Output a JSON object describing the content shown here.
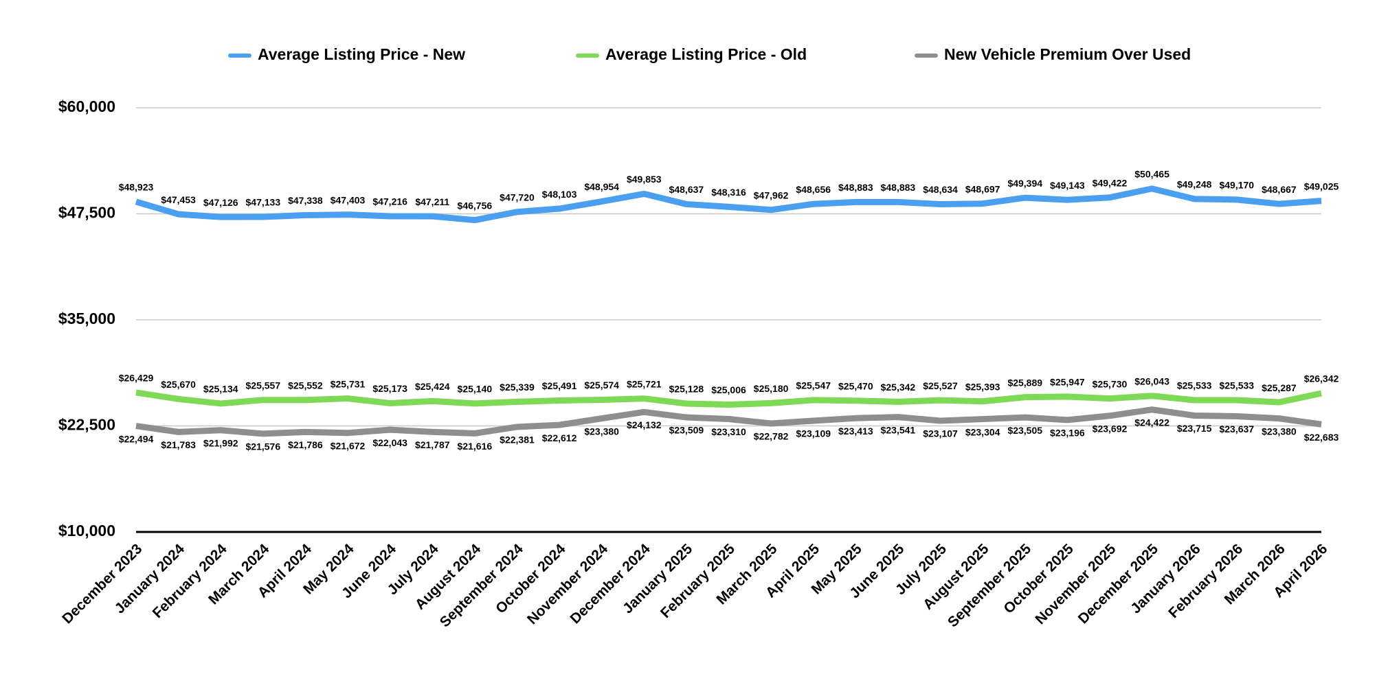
{
  "chart_data": {
    "type": "line",
    "categories": [
      "December 2023",
      "January 2024",
      "February 2024",
      "March 2024",
      "April 2024",
      "May 2024",
      "June 2024",
      "July 2024",
      "August 2024",
      "September 2024",
      "October 2024",
      "November 2024",
      "December 2024",
      "January 2025",
      "February 2025",
      "March 2025",
      "April 2025",
      "May 2025",
      "June 2025",
      "July 2025",
      "August 2025",
      "September 2025",
      "October 2025",
      "November 2025",
      "December 2025",
      "January 2026",
      "February 2026",
      "March 2026",
      "April 2026"
    ],
    "series": [
      {
        "name": "Average Listing Price - New",
        "color": "#4a9ff0",
        "values": [
          48923,
          47453,
          47126,
          47133,
          47338,
          47403,
          47216,
          47211,
          46756,
          47720,
          48103,
          48954,
          49853,
          48637,
          48316,
          47962,
          48656,
          48883,
          48883,
          48634,
          48697,
          49394,
          49143,
          49422,
          50465,
          49248,
          49170,
          48667,
          49025
        ],
        "value_labels": [
          "$48,923",
          "$47,453",
          "$47,126",
          "$47,133",
          "$47,338",
          "$47,403",
          "$47,216",
          "$47,211",
          "$46,756",
          "$47,720",
          "$48,103",
          "$48,954",
          "$49,853",
          "$48,637",
          "$48,316",
          "$47,962",
          "$48,656",
          "$48,883",
          "$48,883",
          "$48,634",
          "$48,697",
          "$49,394",
          "$49,143",
          "$49,422",
          "$50,465",
          "$49,248",
          "$49,170",
          "$48,667",
          "$49,025"
        ]
      },
      {
        "name": "Average Listing Price - Old",
        "color": "#7ed957",
        "values": [
          26429,
          25670,
          25134,
          25557,
          25552,
          25731,
          25173,
          25424,
          25140,
          25339,
          25491,
          25574,
          25721,
          25128,
          25006,
          25180,
          25547,
          25470,
          25342,
          25527,
          25393,
          25889,
          25947,
          25730,
          26043,
          25533,
          25533,
          25287,
          26342
        ],
        "value_labels": [
          "$26,429",
          "$25,670",
          "$25,134",
          "$25,557",
          "$25,552",
          "$25,731",
          "$25,173",
          "$25,424",
          "$25,140",
          "$25,339",
          "$25,491",
          "$25,574",
          "$25,721",
          "$25,128",
          "$25,006",
          "$25,180",
          "$25,547",
          "$25,470",
          "$25,342",
          "$25,527",
          "$25,393",
          "$25,889",
          "$25,947",
          "$25,730",
          "$26,043",
          "$25,533",
          "$25,533",
          "$25,287",
          "$26,342"
        ]
      },
      {
        "name": "New Vehicle Premium Over Used",
        "color": "#8e8e8e",
        "values": [
          22494,
          21783,
          21992,
          21576,
          21786,
          21672,
          22043,
          21787,
          21616,
          22381,
          22612,
          23380,
          24132,
          23509,
          23310,
          22782,
          23109,
          23413,
          23541,
          23107,
          23304,
          23505,
          23196,
          23692,
          24422,
          23715,
          23637,
          23380,
          22683
        ],
        "value_labels": [
          "$22,494",
          "$21,783",
          "$21,992",
          "$21,576",
          "$21,786",
          "$21,672",
          "$22,043",
          "$21,787",
          "$21,616",
          "$22,381",
          "$22,612",
          "$23,380",
          "$24,132",
          "$23,509",
          "$23,310",
          "$22,782",
          "$23,109",
          "$23,413",
          "$23,541",
          "$23,107",
          "$23,304",
          "$23,505",
          "$23,196",
          "$23,692",
          "$24,422",
          "$23,715",
          "$23,637",
          "$23,380",
          "$22,683"
        ]
      }
    ],
    "ylim": [
      10000,
      60000
    ],
    "yticks": [
      {
        "value": 10000,
        "label": "$10,000"
      },
      {
        "value": 22500,
        "label": "$22,500"
      },
      {
        "value": 35000,
        "label": "$35,000"
      },
      {
        "value": 47500,
        "label": "$47,500"
      },
      {
        "value": 60000,
        "label": "$60,000"
      }
    ],
    "grid": true,
    "legend": "top"
  }
}
